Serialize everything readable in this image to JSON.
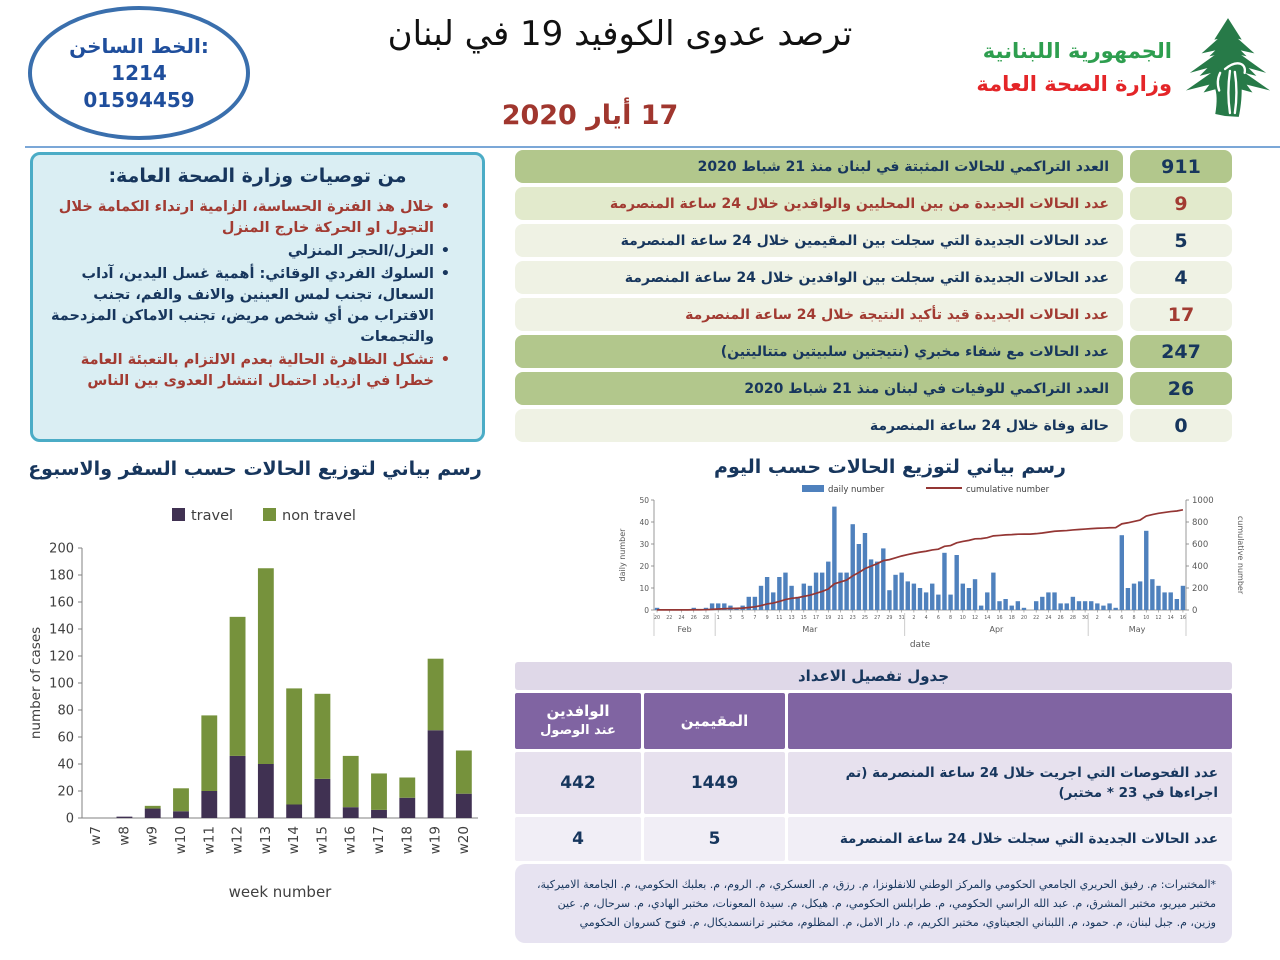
{
  "header": {
    "title": "ترصد عدوى الكوفيد 19 في لبنان",
    "date": "17 أيار 2020",
    "hotline": {
      "label": "الخط الساخن:",
      "number1": "1214",
      "number2": "01594459"
    },
    "ministry": {
      "line1": "الجمهورية اللبنانية",
      "line2": "وزارة الصحة العامة"
    }
  },
  "colors": {
    "navy": "#17365D",
    "red": "#A23B32",
    "teal_border": "#4BACC6",
    "teal_bg": "#DAEEF3",
    "row_dark_green": "#B2C78C",
    "row_medium_green": "#E2EACC",
    "row_light_green": "#EFF2E4",
    "purple_header": "#8064A2",
    "lavender_band": "#DFD8E8",
    "bar_blue": "#4F81BD",
    "line_dark_red": "#943634",
    "travel_purple": "#403152",
    "non_travel_green": "#76923C",
    "logo_green": "#2E9E4F",
    "logo_red": "#E42528",
    "cedar_green": "#277A48"
  },
  "recommendations": {
    "title": "من توصيات وزارة الصحة العامة:",
    "items": [
      {
        "text": "خلال هذ الفترة الحساسة، الزامية ارتداء الكمامة خلال التجول او الحركة خارج المنزل",
        "color": "red"
      },
      {
        "text": "العزل/الحجر المنزلي",
        "color": "navy"
      },
      {
        "text": "السلوك الفردي الوقائي: أهمية غسل اليدين، آداب السعال، تجنب لمس العينين والانف والفم، تجنب الاقتراب من أي شخص مريض، تجنب الاماكن المزدحمة والتجمعات",
        "color": "navy"
      },
      {
        "text": "تشكل الظاهرة الحالية بعدم الالتزام بالتعبئة العامة خطرا في ازدياد احتمال انتشار العدوى بين الناس",
        "color": "red"
      }
    ]
  },
  "stats_rows": [
    {
      "value": "911",
      "label": "العدد التراكمي للحالات المثبتة في لبنان منذ 21 شباط 2020",
      "shade": "dark",
      "color": "navy"
    },
    {
      "value": "9",
      "label": "عدد الحالات الجديدة من بين المحليين والوافدين خلال 24 ساعة المنصرمة",
      "shade": "medium",
      "color": "red"
    },
    {
      "value": "5",
      "label": "عدد الحالات الجديدة التي سجلت بين المقيمين خلال 24 ساعة المنصرمة",
      "shade": "light",
      "color": "navy"
    },
    {
      "value": "4",
      "label": "عدد الحالات الجديدة التي سجلت بين الوافدين خلال 24 ساعة المنصرمة",
      "shade": "light",
      "color": "navy"
    },
    {
      "value": "17",
      "label": "عدد الحالات الجديدة قيد تأكيد النتيجة خلال 24 ساعة المنصرمة",
      "shade": "light",
      "color": "red"
    },
    {
      "value": "247",
      "label": "عدد الحالات مع شفاء مخبري (نتيجتين سلبيتين متتاليتين)",
      "shade": "dark",
      "color": "navy"
    },
    {
      "value": "26",
      "label": "العدد التراكمي للوفيات في لبنان منذ 21 شباط 2020",
      "shade": "dark",
      "color": "navy"
    },
    {
      "value": "0",
      "label": "حالة وفاة خلال 24 ساعة المنصرمة",
      "shade": "light",
      "color": "navy"
    }
  ],
  "chart_data": [
    {
      "id": "weekly",
      "type": "bar",
      "stacked": true,
      "title": "رسم بياني لتوزيع الحالات حسب السفر والاسبوع",
      "categories": [
        "w7",
        "w8",
        "w9",
        "w10",
        "w11",
        "w12",
        "w13",
        "w14",
        "w15",
        "w16",
        "w17",
        "w18",
        "w19",
        "w20"
      ],
      "series": [
        {
          "name": "travel",
          "color": "#403152",
          "values": [
            0,
            1,
            7,
            5,
            20,
            46,
            40,
            10,
            29,
            8,
            6,
            15,
            65,
            18
          ]
        },
        {
          "name": "non travel",
          "color": "#76923C",
          "values": [
            0,
            0,
            2,
            17,
            56,
            103,
            145,
            86,
            63,
            38,
            27,
            15,
            53,
            32
          ]
        }
      ],
      "xlabel": "week number",
      "ylabel": "number of cases",
      "ylim": [
        0,
        200
      ],
      "ytick_step": 20,
      "legend_position": "top",
      "grid": false
    },
    {
      "id": "daily",
      "type": "bar+line",
      "title": "رسم بياني لتوزيع الحالات حسب اليوم",
      "months": [
        {
          "name": "Feb",
          "days": 10,
          "first_day": 20
        },
        {
          "name": "Mar",
          "days": 31,
          "first_day": 1
        },
        {
          "name": "Apr",
          "days": 30,
          "first_day": 1
        },
        {
          "name": "May",
          "days": 16,
          "first_day": 1
        }
      ],
      "series": [
        {
          "name": "daily number",
          "type": "bar",
          "color": "#4F81BD",
          "values": [
            1,
            0,
            0,
            0,
            0,
            0,
            1,
            0,
            1,
            3,
            3,
            3,
            2,
            1,
            2,
            6,
            6,
            11,
            15,
            8,
            15,
            17,
            11,
            6,
            12,
            11,
            17,
            17,
            22,
            47,
            17,
            17,
            39,
            30,
            35,
            23,
            22,
            28,
            9,
            16,
            17,
            13,
            12,
            10,
            8,
            12,
            7,
            26,
            7,
            25,
            12,
            10,
            14,
            2,
            8,
            17,
            4,
            5,
            2,
            4,
            1,
            0,
            4,
            6,
            8,
            8,
            3,
            3,
            6,
            4,
            4,
            4,
            3,
            2,
            3,
            1,
            34,
            10,
            12,
            13,
            36,
            14,
            11,
            8,
            8,
            5,
            11
          ]
        },
        {
          "name": "cumulative number",
          "type": "line",
          "color": "#943634",
          "cumulative_of": "daily number",
          "final_total": 911
        }
      ],
      "xlabel": "date",
      "ylabel_left": "daily number",
      "ylabel_right": "cumulative number",
      "ylim_left": [
        0,
        50
      ],
      "ylim_right": [
        0,
        1000
      ],
      "legend_position": "top",
      "grid": false
    }
  ],
  "detail_table": {
    "title": "جدول تفصيل الاعداد",
    "col_residents": "المقيمين",
    "col_arrivals_line1": "الوافدين",
    "col_arrivals_line2": "عند الوصول",
    "rows": [
      {
        "label": "عدد الفحوصات التي اجريت خلال 24 ساعة المنصرمة (تم اجراءها في 23 * مختبر)",
        "residents": "1449",
        "arrivals": "442"
      },
      {
        "label": "عدد الحالات الجديدة التي سجلت خلال 24 ساعة المنصرمة",
        "residents": "5",
        "arrivals": "4"
      }
    ]
  },
  "footnote": "*المختبرات: م. رفيق الحريري الجامعي الحكومي والمركز الوطني للانفلونزا، م. رزق، م. العسكري، م. الروم، م. بعلبك الحكومي، م. الجامعة الاميركية، مختبر ميريو، مختبر المشرق، م. عبد الله الراسي الحكومي، م. طرابلس الحكومي، م. هيكل، م. سيدة المعونات، مختبر الهادي، م. سرحال، م. عين وزين، م. جبل لبنان، م. حمود، م. اللبناني الجعيتاوي، مختبر الكريم، م. دار الامل، م. المظلوم، مختبر ترانسمديكال، م. فتوح كسروان الحكومي"
}
